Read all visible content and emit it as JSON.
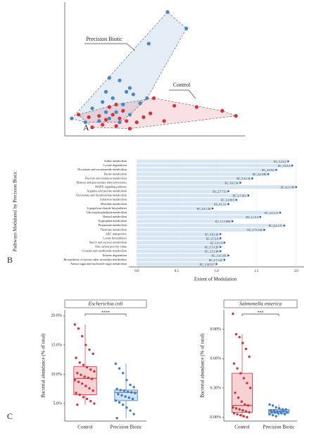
{
  "chart_data": [
    {
      "type": "scatter",
      "panel_label": "A",
      "xlim": [
        0,
        10
      ],
      "ylim": [
        0,
        10
      ],
      "series": [
        {
          "name": "Precision Biotic",
          "color": "#4a86c0",
          "x": [
            5.8,
            6.9,
            4.7,
            2.4,
            3.0,
            2.2,
            3.4,
            3.8,
            2.6,
            2.0,
            3.2,
            4.2,
            2.8,
            2.2,
            1.4,
            3.6,
            2.4,
            3.0,
            1.8,
            1.0,
            0.2,
            4.6,
            3.6
          ],
          "y": [
            9.5,
            8.2,
            7.0,
            4.3,
            4.1,
            3.2,
            3.2,
            3.0,
            2.7,
            2.4,
            2.2,
            2.3,
            1.6,
            1.6,
            1.9,
            1.4,
            1.1,
            0.8,
            0.9,
            0.8,
            1.1,
            2.7,
            3.5
          ]
        },
        {
          "name": "Control",
          "color": "#d7303a",
          "x": [
            6.2,
            7.5,
            9.0,
            9.8,
            5.0,
            4.8,
            2.2,
            2.6,
            3.0,
            1.8,
            2.0,
            2.8,
            3.4,
            1.2,
            1.4,
            4.0,
            3.6,
            2.4,
            5.6,
            0.6,
            4.4,
            2.8,
            3.2
          ],
          "y": [
            2.1,
            2.0,
            1.7,
            1.3,
            2.7,
            1.5,
            1.0,
            1.4,
            1.1,
            1.3,
            0.6,
            0.5,
            0.9,
            1.2,
            0.4,
            0.8,
            0.3,
            2.0,
            0.9,
            1.4,
            1.2,
            2.2,
            1.7
          ]
        }
      ]
    },
    {
      "type": "hbar",
      "panel_label": "B",
      "y_label": "Pathways Modulated by Precision Biotic",
      "x_label": "Extent of Modulation",
      "bar_color": "#d5e5f3",
      "point_color": "#2f5f94",
      "categories": [
        "Sulfur metabolism",
        "Lysine degradation",
        "Nicotinate and nicotinamide metabolism",
        "Purine metabolism",
        "Fructose and mannose metabolism",
        "Pentose and glucuronate interconversions",
        "MAPK signaling pathway",
        "Arginine and proline metabolism",
        "Glyoxylate and dicarboxylate metabolism",
        "Galactose metabolism",
        "Histidine metabolism",
        "Lipopolysaccharide biosynthesis",
        "Glycerophospholipid metabolism",
        "Retinol metabolism",
        "Tryptophan metabolism",
        "Propanoate metabolism",
        "Thiamine metabolism",
        "ABC transporters",
        "Lysine biosynthesis",
        "Starch and sucrose metabolism",
        "One carbon pool by folate",
        "Cysteine and methionine metabolism",
        "Toluene degradation",
        "Biosynthesis of various other secondary metabolites",
        "Amino sugar and nucleotide sugar metabolism"
      ],
      "values": [
        1.9,
        1.95,
        1.75,
        1.65,
        1.45,
        1.3,
        2.0,
        1.15,
        1.4,
        1.25,
        1.15,
        0.95,
        1.8,
        1.55,
        1.2,
        1.85,
        1.6,
        1.05,
        1.05,
        1.1,
        1.05,
        1.05,
        1.15,
        1.1,
        1.0
      ],
      "point_labels": [
        "EC_3.4.2.2",
        "EC_1.6.5.4",
        "EC_3.5.5.6",
        "EC_4.2.1.80",
        "EC_5.3.1.14",
        "EC_3.6.1.14",
        "EC_4.2.1.90",
        "EC_2.7.7.12",
        "EC_2.7.10.2",
        "EC_1.2.99.5",
        "EC_4.1.3.1",
        "EC_3.6.1.26",
        "EC_4.1.2.11",
        "EC_1.1.5.3",
        "EC_1.1.1.900",
        "EC_4.2.1.11",
        "EC_2.7.1.130",
        "EC_3.6.3.10",
        "EC_2.7.2.4",
        "EC_3.2.1.4",
        "EC_1.5.1.20",
        "EC_2.5.1.48",
        "EC_1.3.1.101",
        "EC_2.7.1.21",
        "EC_1.14.13.7"
      ],
      "xlim": [
        -0.1,
        2.1
      ],
      "xticks": [
        {
          "value": 0,
          "label": "0.0"
        },
        {
          "value": 0.5,
          "label": "0.5"
        },
        {
          "value": 1,
          "label": "1.0"
        },
        {
          "value": 1.5,
          "label": "1.5"
        },
        {
          "value": 2,
          "label": "2.0"
        }
      ]
    },
    {
      "type": "box",
      "panel_label": "C",
      "title": "Escherichia coli",
      "y_label": "Bacterial abundance (% of total)",
      "significance": "****",
      "categories": [
        "Control",
        "Precision Biotic"
      ],
      "colors": [
        "#d7303a",
        "#3b7dc0"
      ],
      "ylim": [
        2,
        21
      ],
      "yticks": [
        {
          "value": 5,
          "label": "5.0%"
        },
        {
          "value": 10,
          "label": "10.0%"
        },
        {
          "value": 15,
          "label": "15.0%"
        },
        {
          "value": 20,
          "label": "20.0%"
        }
      ],
      "boxes": [
        {
          "whisker_low": 4.8,
          "q1": 6.5,
          "median": 9.3,
          "q3": 11.3,
          "whisker_high": 18.5,
          "points": [
            18.5,
            17.8,
            16.5,
            15.0,
            14.2,
            13.5,
            12.8,
            12.0,
            11.6,
            11.2,
            10.8,
            10.5,
            10.2,
            9.9,
            9.6,
            9.4,
            9.2,
            9.0,
            8.7,
            8.4,
            8.0,
            7.6,
            7.2,
            6.8,
            6.5,
            6.1,
            5.8,
            5.4,
            5.0,
            4.8
          ]
        },
        {
          "whisker_low": 2.5,
          "q1": 5.5,
          "median": 6.9,
          "q3": 7.3,
          "whisker_high": 11.8,
          "points": [
            11.8,
            11.0,
            10.2,
            9.0,
            8.2,
            7.8,
            7.5,
            7.3,
            7.2,
            7.0,
            6.9,
            6.8,
            6.6,
            6.4,
            6.2,
            6.0,
            5.8,
            5.5,
            5.2,
            4.8,
            4.3,
            3.8,
            3.2,
            2.5
          ]
        }
      ]
    },
    {
      "type": "box",
      "title": "Salmonella enterica",
      "y_label": "Bacterial abundance (% of total)",
      "significance": "***",
      "categories": [
        "Control",
        "Precision Biotic"
      ],
      "colors": [
        "#d7303a",
        "#3b7dc0"
      ],
      "ylim": [
        -0.04,
        1.1
      ],
      "yticks": [
        {
          "value": 0,
          "label": "0.00%"
        },
        {
          "value": 0.3,
          "label": "0.30%"
        },
        {
          "value": 0.6,
          "label": "0.60%"
        },
        {
          "value": 0.9,
          "label": "0.90%"
        }
      ],
      "boxes": [
        {
          "whisker_low": 0.0,
          "q1": 0.05,
          "median": 0.12,
          "q3": 0.45,
          "whisker_high": 0.85,
          "points": [
            1.06,
            0.85,
            0.82,
            0.76,
            0.7,
            0.62,
            0.55,
            0.5,
            0.45,
            0.4,
            0.35,
            0.3,
            0.25,
            0.2,
            0.16,
            0.13,
            0.12,
            0.1,
            0.09,
            0.08,
            0.07,
            0.06,
            0.05,
            0.04,
            0.03,
            0.02,
            0.01,
            0.0
          ]
        },
        {
          "whisker_low": 0.01,
          "q1": 0.04,
          "median": 0.06,
          "q3": 0.08,
          "whisker_high": 0.13,
          "points": [
            0.13,
            0.12,
            0.1,
            0.09,
            0.08,
            0.08,
            0.07,
            0.07,
            0.06,
            0.06,
            0.06,
            0.05,
            0.05,
            0.05,
            0.04,
            0.04,
            0.03,
            0.03,
            0.02,
            0.01
          ]
        }
      ]
    }
  ]
}
